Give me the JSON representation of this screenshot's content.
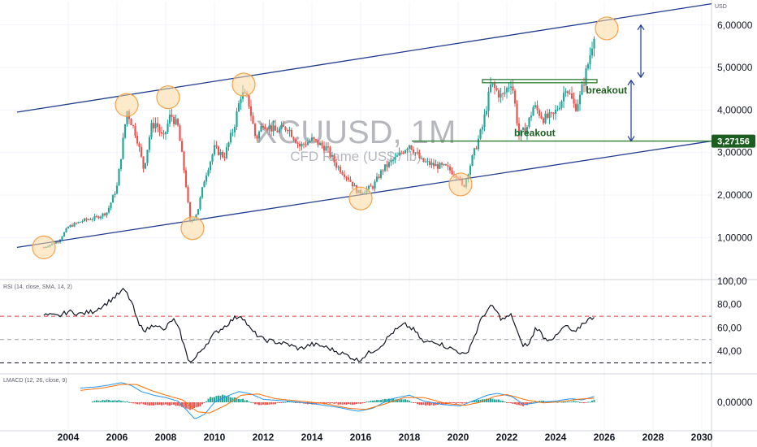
{
  "chart_data": [
    {
      "type": "candlestick",
      "title": "XCUUSD, 1M",
      "subtitle": "CFD Rame (US$ / lb)",
      "currency": "USD",
      "last_price": "3,27156",
      "y_ticks": [
        "1,00000",
        "2,00000",
        "3,00000",
        "4,00000",
        "5,00000",
        "6,00000"
      ],
      "y_tick_values": [
        1,
        2,
        3,
        4,
        5,
        6
      ],
      "ylim": [
        0.05,
        6.55
      ],
      "x_ticks": [
        "2004",
        "2006",
        "2008",
        "2010",
        "2012",
        "2014",
        "2016",
        "2018",
        "2020",
        "2022",
        "2024",
        "2026",
        "2028",
        "2030"
      ],
      "x_tick_values": [
        2004,
        2006,
        2008,
        2010,
        2012,
        2014,
        2016,
        2018,
        2020,
        2022,
        2024,
        2026,
        2028,
        2030
      ],
      "xlim": [
        2001.2,
        2030.4
      ],
      "series_path": [
        [
          2003.0,
          0.77
        ],
        [
          2003.6,
          0.92
        ],
        [
          2004.0,
          1.25
        ],
        [
          2004.6,
          1.4
        ],
        [
          2005.2,
          1.48
        ],
        [
          2005.6,
          1.6
        ],
        [
          2006.0,
          2.2
        ],
        [
          2006.3,
          3.5
        ],
        [
          2006.4,
          4.0
        ],
        [
          2006.8,
          3.4
        ],
        [
          2007.1,
          2.6
        ],
        [
          2007.4,
          3.6
        ],
        [
          2007.6,
          3.7
        ],
        [
          2007.9,
          3.3
        ],
        [
          2008.2,
          3.9
        ],
        [
          2008.5,
          3.6
        ],
        [
          2008.8,
          2.4
        ],
        [
          2009.0,
          1.35
        ],
        [
          2009.3,
          1.6
        ],
        [
          2009.6,
          2.4
        ],
        [
          2010.0,
          3.1
        ],
        [
          2010.4,
          2.9
        ],
        [
          2010.8,
          3.6
        ],
        [
          2011.1,
          4.4
        ],
        [
          2011.4,
          4.2
        ],
        [
          2011.7,
          3.3
        ],
        [
          2012.0,
          3.7
        ],
        [
          2012.5,
          3.5
        ],
        [
          2013.0,
          3.6
        ],
        [
          2013.5,
          3.15
        ],
        [
          2014.0,
          3.3
        ],
        [
          2014.6,
          3.1
        ],
        [
          2015.0,
          2.7
        ],
        [
          2015.5,
          2.4
        ],
        [
          2015.9,
          2.05
        ],
        [
          2016.5,
          2.2
        ],
        [
          2016.9,
          2.6
        ],
        [
          2017.5,
          2.9
        ],
        [
          2018.0,
          3.2
        ],
        [
          2018.5,
          2.8
        ],
        [
          2019.0,
          2.7
        ],
        [
          2019.5,
          2.65
        ],
        [
          2020.0,
          2.45
        ],
        [
          2020.2,
          2.15
        ],
        [
          2020.6,
          2.9
        ],
        [
          2021.0,
          3.6
        ],
        [
          2021.35,
          4.6
        ],
        [
          2021.8,
          4.3
        ],
        [
          2022.2,
          4.7
        ],
        [
          2022.5,
          3.4
        ],
        [
          2022.8,
          3.55
        ],
        [
          2023.1,
          4.1
        ],
        [
          2023.5,
          3.8
        ],
        [
          2023.9,
          3.85
        ],
        [
          2024.3,
          4.3
        ],
        [
          2024.4,
          4.6
        ],
        [
          2024.8,
          4.05
        ],
        [
          2025.0,
          4.3
        ],
        [
          2025.3,
          5.0
        ],
        [
          2025.45,
          5.4
        ],
        [
          2025.6,
          5.9
        ]
      ],
      "channel_upper": [
        [
          2001.9,
          3.95
        ],
        [
          2030.4,
          6.5
        ]
      ],
      "channel_lower": [
        [
          2001.9,
          0.77
        ],
        [
          2030.4,
          3.27
        ]
      ],
      "support_level": 3.27,
      "resistance_level": 4.68,
      "resistance_start": 2021.0,
      "resistance_end": 2025.7,
      "support_start": 2018.1,
      "touch_points": [
        [
          2003.0,
          0.77
        ],
        [
          2006.4,
          4.12
        ],
        [
          2008.1,
          4.3
        ],
        [
          2009.1,
          1.22
        ],
        [
          2011.2,
          4.6
        ],
        [
          2016.0,
          1.92
        ],
        [
          2020.1,
          2.25
        ],
        [
          2026.1,
          5.92
        ]
      ],
      "annotations": [
        "breakout",
        "breakout"
      ],
      "arrow_small": [
        5.3,
        4.68
      ],
      "arrow_large": [
        4.7,
        3.27
      ]
    },
    {
      "type": "line",
      "label": "RSI (14, close, SMA, 14, 2)",
      "y_ticks": [
        "40,00",
        "60,00",
        "80,00",
        "100,00"
      ],
      "y_tick_values": [
        40,
        60,
        80,
        100
      ],
      "ylim": [
        22,
        100
      ],
      "levels": [
        70,
        50,
        30
      ],
      "values": [
        [
          2003.0,
          71
        ],
        [
          2003.6,
          70
        ],
        [
          2004.0,
          74
        ],
        [
          2004.5,
          72
        ],
        [
          2005.0,
          74
        ],
        [
          2005.5,
          80
        ],
        [
          2006.0,
          88
        ],
        [
          2006.3,
          93
        ],
        [
          2006.6,
          82
        ],
        [
          2006.9,
          62
        ],
        [
          2007.2,
          58
        ],
        [
          2007.6,
          64
        ],
        [
          2007.9,
          57
        ],
        [
          2008.3,
          68
        ],
        [
          2008.6,
          56
        ],
        [
          2008.9,
          34
        ],
        [
          2009.1,
          31
        ],
        [
          2009.5,
          42
        ],
        [
          2010.0,
          55
        ],
        [
          2010.4,
          61
        ],
        [
          2010.8,
          68
        ],
        [
          2011.1,
          71
        ],
        [
          2011.5,
          58
        ],
        [
          2012.0,
          50
        ],
        [
          2012.5,
          48
        ],
        [
          2013.0,
          46
        ],
        [
          2013.5,
          42
        ],
        [
          2014.0,
          46
        ],
        [
          2014.5,
          44
        ],
        [
          2015.0,
          40
        ],
        [
          2015.5,
          36
        ],
        [
          2015.9,
          32
        ],
        [
          2016.3,
          38
        ],
        [
          2016.8,
          44
        ],
        [
          2017.3,
          56
        ],
        [
          2017.8,
          63
        ],
        [
          2018.2,
          58
        ],
        [
          2018.6,
          47
        ],
        [
          2019.0,
          49
        ],
        [
          2019.5,
          44
        ],
        [
          2020.0,
          40
        ],
        [
          2020.3,
          36
        ],
        [
          2020.7,
          54
        ],
        [
          2021.0,
          70
        ],
        [
          2021.4,
          79
        ],
        [
          2021.8,
          67
        ],
        [
          2022.2,
          71
        ],
        [
          2022.6,
          46
        ],
        [
          2022.9,
          45
        ],
        [
          2023.2,
          61
        ],
        [
          2023.6,
          50
        ],
        [
          2024.0,
          52
        ],
        [
          2024.4,
          62
        ],
        [
          2024.8,
          55
        ],
        [
          2025.1,
          64
        ],
        [
          2025.6,
          70
        ]
      ]
    },
    {
      "type": "macd",
      "label": "LMACD (12, 26, close, 9)",
      "y_ticks": [
        "0,00000"
      ],
      "y_tick_values": [
        0
      ],
      "ylim": [
        -0.45,
        0.45
      ],
      "macd": [
        [
          2004.5,
          0.24
        ],
        [
          2005.2,
          0.26
        ],
        [
          2005.8,
          0.3
        ],
        [
          2006.2,
          0.33
        ],
        [
          2006.6,
          0.28
        ],
        [
          2007.0,
          0.18
        ],
        [
          2007.5,
          0.12
        ],
        [
          2008.0,
          0.08
        ],
        [
          2008.5,
          0.02
        ],
        [
          2008.9,
          -0.15
        ],
        [
          2009.2,
          -0.28
        ],
        [
          2009.6,
          -0.2
        ],
        [
          2010.0,
          0.0
        ],
        [
          2010.5,
          0.1
        ],
        [
          2011.0,
          0.18
        ],
        [
          2011.5,
          0.14
        ],
        [
          2012.0,
          0.05
        ],
        [
          2013.0,
          0.02
        ],
        [
          2014.0,
          -0.02
        ],
        [
          2015.0,
          -0.08
        ],
        [
          2015.9,
          -0.15
        ],
        [
          2016.5,
          -0.1
        ],
        [
          2017.2,
          0.05
        ],
        [
          2018.0,
          0.12
        ],
        [
          2018.6,
          0.02
        ],
        [
          2019.4,
          -0.04
        ],
        [
          2020.1,
          -0.06
        ],
        [
          2020.6,
          0.02
        ],
        [
          2021.2,
          0.12
        ],
        [
          2021.6,
          0.15
        ],
        [
          2022.2,
          0.1
        ],
        [
          2022.7,
          -0.04
        ],
        [
          2023.3,
          0.0
        ],
        [
          2024.0,
          0.02
        ],
        [
          2024.6,
          0.06
        ],
        [
          2025.1,
          0.04
        ],
        [
          2025.6,
          0.1
        ]
      ],
      "signal": [
        [
          2004.5,
          0.2
        ],
        [
          2005.4,
          0.24
        ],
        [
          2006.2,
          0.3
        ],
        [
          2006.8,
          0.3
        ],
        [
          2007.4,
          0.2
        ],
        [
          2008.0,
          0.12
        ],
        [
          2008.7,
          0.04
        ],
        [
          2009.3,
          -0.16
        ],
        [
          2009.8,
          -0.18
        ],
        [
          2010.5,
          -0.04
        ],
        [
          2011.1,
          0.12
        ],
        [
          2011.8,
          0.14
        ],
        [
          2012.5,
          0.06
        ],
        [
          2013.5,
          0.02
        ],
        [
          2014.5,
          -0.02
        ],
        [
          2015.5,
          -0.1
        ],
        [
          2016.2,
          -0.12
        ],
        [
          2016.9,
          -0.04
        ],
        [
          2017.8,
          0.08
        ],
        [
          2018.6,
          0.08
        ],
        [
          2019.5,
          -0.02
        ],
        [
          2020.3,
          -0.05
        ],
        [
          2020.9,
          0.0
        ],
        [
          2021.5,
          0.1
        ],
        [
          2022.0,
          0.13
        ],
        [
          2022.8,
          0.04
        ],
        [
          2023.5,
          -0.01
        ],
        [
          2024.2,
          0.01
        ],
        [
          2024.9,
          0.05
        ],
        [
          2025.6,
          0.07
        ]
      ],
      "histogram": [
        [
          2005.0,
          0.02
        ],
        [
          2005.6,
          0.04
        ],
        [
          2006.2,
          0.03
        ],
        [
          2006.8,
          -0.02
        ],
        [
          2007.4,
          -0.05
        ],
        [
          2008.0,
          -0.04
        ],
        [
          2008.6,
          -0.06
        ],
        [
          2009.0,
          -0.12
        ],
        [
          2009.4,
          -0.08
        ],
        [
          2009.8,
          0.08
        ],
        [
          2010.3,
          0.12
        ],
        [
          2010.8,
          0.08
        ],
        [
          2011.3,
          0.04
        ],
        [
          2011.8,
          -0.05
        ],
        [
          2012.4,
          -0.03
        ],
        [
          2013.0,
          0.02
        ],
        [
          2013.6,
          -0.02
        ],
        [
          2014.2,
          -0.03
        ],
        [
          2014.8,
          -0.02
        ],
        [
          2015.4,
          -0.04
        ],
        [
          2016.0,
          -0.02
        ],
        [
          2016.6,
          0.04
        ],
        [
          2017.2,
          0.06
        ],
        [
          2017.8,
          0.05
        ],
        [
          2018.4,
          -0.04
        ],
        [
          2019.0,
          -0.05
        ],
        [
          2019.6,
          -0.02
        ],
        [
          2020.2,
          -0.02
        ],
        [
          2020.7,
          0.04
        ],
        [
          2021.2,
          0.06
        ],
        [
          2021.7,
          0.04
        ],
        [
          2022.2,
          -0.02
        ],
        [
          2022.7,
          -0.06
        ],
        [
          2023.2,
          0.02
        ],
        [
          2023.7,
          0.02
        ],
        [
          2024.2,
          0.01
        ],
        [
          2024.7,
          0.02
        ],
        [
          2025.2,
          -0.01
        ],
        [
          2025.6,
          0.04
        ]
      ]
    }
  ],
  "colors": {
    "bull": "#26a69a",
    "bear": "#ef5350",
    "channel": "#1d3c8f",
    "level": "#2e7d32",
    "circle_fill": "#fcd9a0",
    "circle_stroke": "#f4a24a",
    "arrow": "#1d3c8f",
    "rsi_line": "#131722",
    "rsi_upper": "#e04040",
    "rsi_mid": "#9598a1",
    "rsi_lower": "#131722",
    "macd_line": "#2196f3",
    "signal_line": "#ff6d00",
    "price_tag": "#1b5e20",
    "grid": "#f0f3fa",
    "axis_line": "#d1d4dc"
  }
}
